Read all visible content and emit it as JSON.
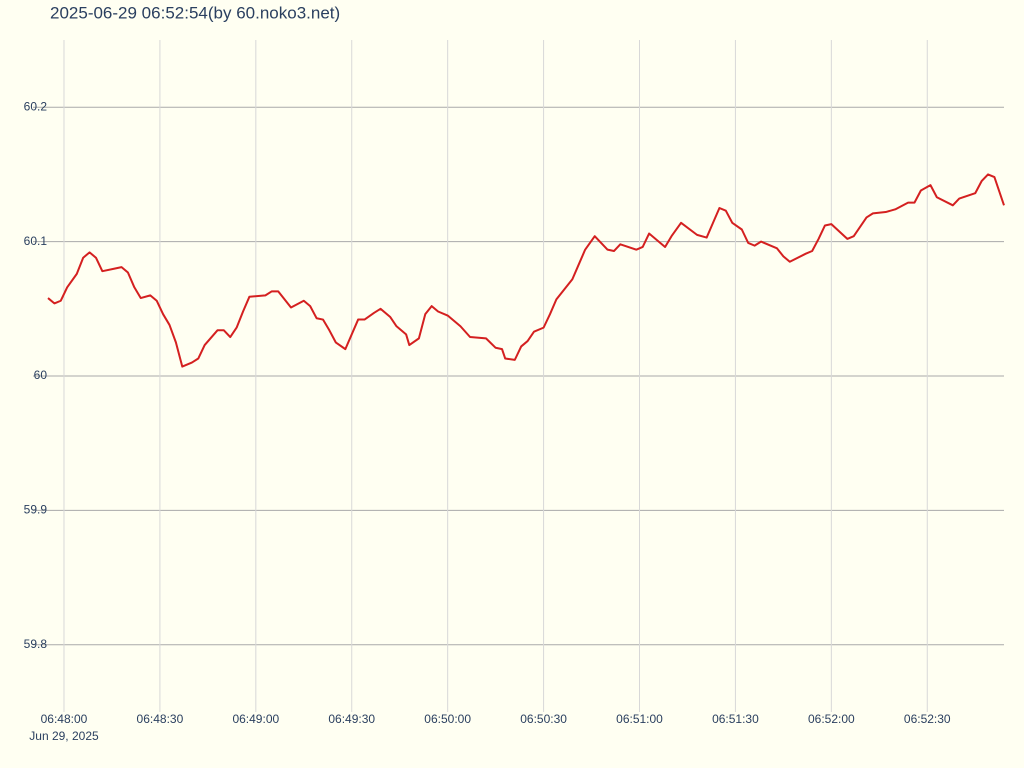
{
  "chart_data": {
    "type": "line",
    "title": "2025-06-29 06:52:54(by 60.noko3.net)",
    "x_date_label": "Jun 29, 2025",
    "color": "#d42020",
    "grid": true,
    "x": [
      "06:47:55",
      "06:47:57",
      "06:47:59",
      "06:48:01",
      "06:48:04",
      "06:48:06",
      "06:48:08",
      "06:48:10",
      "06:48:12",
      "06:48:16",
      "06:48:18",
      "06:48:20",
      "06:48:22",
      "06:48:24",
      "06:48:27",
      "06:48:29",
      "06:48:31",
      "06:48:33",
      "06:48:35",
      "06:48:37",
      "06:48:40",
      "06:48:42",
      "06:48:44",
      "06:48:48",
      "06:48:50",
      "06:48:52",
      "06:48:54",
      "06:48:56",
      "06:48:58",
      "06:49:03",
      "06:49:05",
      "06:49:07",
      "06:49:08",
      "06:49:11",
      "06:49:15",
      "06:49:17",
      "06:49:19",
      "06:49:21",
      "06:49:23",
      "06:49:25",
      "06:49:28",
      "06:49:32",
      "06:49:34",
      "06:49:37",
      "06:49:39",
      "06:49:42",
      "06:49:44",
      "06:49:47",
      "06:49:48",
      "06:49:51",
      "06:49:53",
      "06:49:55",
      "06:49:57",
      "06:50:00",
      "06:50:04",
      "06:50:07",
      "06:50:12",
      "06:50:15",
      "06:50:17",
      "06:50:18",
      "06:50:21",
      "06:50:23",
      "06:50:25",
      "06:50:27",
      "06:50:30",
      "06:50:32",
      "06:50:34",
      "06:50:39",
      "06:50:41",
      "06:50:43",
      "06:50:46",
      "06:50:50",
      "06:50:52",
      "06:50:54",
      "06:50:59",
      "06:51:01",
      "06:51:03",
      "06:51:08",
      "06:51:10",
      "06:51:13",
      "06:51:18",
      "06:51:21",
      "06:51:23",
      "06:51:25",
      "06:51:27",
      "06:51:29",
      "06:51:32",
      "06:51:34",
      "06:51:36",
      "06:51:38",
      "06:51:43",
      "06:51:45",
      "06:51:47",
      "06:51:52",
      "06:51:54",
      "06:51:56",
      "06:51:58",
      "06:52:00",
      "06:52:05",
      "06:52:07",
      "06:52:11",
      "06:52:13",
      "06:52:17",
      "06:52:20",
      "06:52:24",
      "06:52:26",
      "06:52:28",
      "06:52:31",
      "06:52:33",
      "06:52:38",
      "06:52:40",
      "06:52:45",
      "06:52:47",
      "06:52:49",
      "06:52:51",
      "06:52:54"
    ],
    "values": [
      60.058,
      60.054,
      60.056,
      60.066,
      60.076,
      60.088,
      60.092,
      60.088,
      60.078,
      60.08,
      60.081,
      60.077,
      60.066,
      60.058,
      60.06,
      60.056,
      60.046,
      60.038,
      60.025,
      60.007,
      60.01,
      60.013,
      60.023,
      60.034,
      60.034,
      60.029,
      60.036,
      60.048,
      60.059,
      60.06,
      60.063,
      60.063,
      60.06,
      60.051,
      60.056,
      60.052,
      60.043,
      60.042,
      60.034,
      60.025,
      60.02,
      60.042,
      60.042,
      60.047,
      60.05,
      60.044,
      60.037,
      60.031,
      60.023,
      60.028,
      60.046,
      60.052,
      60.048,
      60.045,
      60.037,
      60.029,
      60.028,
      60.021,
      60.02,
      60.013,
      60.012,
      60.022,
      60.026,
      60.033,
      60.036,
      60.046,
      60.057,
      60.072,
      60.083,
      60.094,
      60.104,
      60.094,
      60.093,
      60.098,
      60.094,
      60.096,
      60.106,
      60.096,
      60.104,
      60.114,
      60.105,
      60.103,
      60.114,
      60.125,
      60.123,
      60.114,
      60.109,
      60.099,
      60.097,
      60.1,
      60.095,
      60.089,
      60.085,
      60.091,
      60.093,
      60.102,
      60.112,
      60.113,
      60.102,
      60.104,
      60.118,
      60.121,
      60.122,
      60.124,
      60.129,
      60.129,
      60.138,
      60.142,
      60.133,
      60.127,
      60.132,
      60.136,
      60.145,
      60.15,
      60.148,
      60.127
    ],
    "xlim": [
      "06:47:55",
      "06:52:54"
    ],
    "xticks": [
      "06:48:00",
      "06:48:30",
      "06:49:00",
      "06:49:30",
      "06:50:00",
      "06:50:30",
      "06:51:00",
      "06:51:30",
      "06:52:00",
      "06:52:30"
    ],
    "ylim": [
      59.75,
      60.25
    ],
    "yticks": [
      59.8,
      59.9,
      60,
      60.1,
      60.2
    ]
  }
}
